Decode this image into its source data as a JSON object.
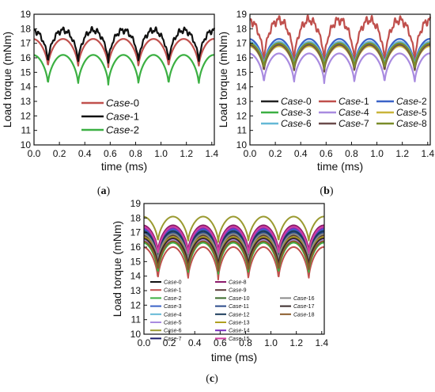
{
  "colors": {
    "case0": "#222222",
    "case1": "#c0504d",
    "case2": "#3cb043",
    "case3": "#3b63c8",
    "case4": "#a98be0",
    "case5": "#c9b43a",
    "case6": "#64b8d6",
    "case7": "#6b4b4b",
    "case8": "#7a8c2a"
  },
  "chart_data": [
    {
      "type": "line",
      "panel_label": "(a)",
      "xlabel": "time (ms)",
      "ylabel": "Load torque (mNm)",
      "xlim": [
        0.0,
        1.42
      ],
      "ylim": [
        10,
        19
      ],
      "xticks": [
        "0.0",
        "0.2",
        "0.4",
        "0.6",
        "0.8",
        "1.0",
        "1.2",
        "1.4"
      ],
      "yticks": [
        "10",
        "11",
        "12",
        "13",
        "14",
        "15",
        "16",
        "17",
        "18",
        "19"
      ],
      "legend_placement": "bottom-center",
      "period_ms": 0.2375,
      "series": [
        {
          "name": "Case-0",
          "color": "#c0504d",
          "peak": 17.3,
          "trough": 15.3
        },
        {
          "name": "Case-1",
          "color": "#111111",
          "peak": 17.9,
          "trough": 15.6,
          "noise": 0.25
        },
        {
          "name": "Case-2",
          "color": "#3cb043",
          "peak": 16.2,
          "trough": 14.1
        }
      ]
    },
    {
      "type": "line",
      "panel_label": "(b)",
      "xlabel": "time (ms)",
      "ylabel": "Load torque (mNm)",
      "xlim": [
        0.0,
        1.42
      ],
      "ylim": [
        10,
        19
      ],
      "xticks": [
        "0.0",
        "0.2",
        "0.4",
        "0.6",
        "0.8",
        "1.0",
        "1.2",
        "1.4"
      ],
      "yticks": [
        "10",
        "11",
        "12",
        "13",
        "14",
        "15",
        "16",
        "17",
        "18",
        "19"
      ],
      "legend_placement": "bottom",
      "period_ms": 0.2375,
      "series": [
        {
          "name": "Case-0",
          "color": "#222222",
          "peak": 17.1,
          "trough": 15.2
        },
        {
          "name": "Case-1",
          "color": "#c0504d",
          "peak": 18.6,
          "trough": 15.6,
          "noise": 0.35
        },
        {
          "name": "Case-2",
          "color": "#3b63c8",
          "peak": 17.3,
          "trough": 15.3
        },
        {
          "name": "Case-3",
          "color": "#3cb043",
          "peak": 17.0,
          "trough": 15.1
        },
        {
          "name": "Case-4",
          "color": "#a98be0",
          "peak": 16.3,
          "trough": 14.2
        },
        {
          "name": "Case-5",
          "color": "#c9b43a",
          "peak": 16.8,
          "trough": 15.0
        },
        {
          "name": "Case-6",
          "color": "#64b8d6",
          "peak": 17.1,
          "trough": 15.3
        },
        {
          "name": "Case-7",
          "color": "#6b4b4b",
          "peak": 16.9,
          "trough": 15.0
        },
        {
          "name": "Case-8",
          "color": "#7a8c2a",
          "peak": 17.0,
          "trough": 15.2
        }
      ]
    },
    {
      "type": "line",
      "panel_label": "(c)",
      "xlabel": "time (ms)",
      "ylabel": "Load torque (mNm)",
      "xlim": [
        0.0,
        1.42
      ],
      "ylim": [
        10,
        19
      ],
      "xticks": [
        "0.0",
        "0.2",
        "0.4",
        "0.6",
        "0.8",
        "1.0",
        "1.2",
        "1.4"
      ],
      "yticks": [
        "10",
        "11",
        "12",
        "13",
        "14",
        "15",
        "16",
        "17",
        "18",
        "19"
      ],
      "legend_placement": "bottom",
      "period_ms": 0.2375,
      "series": [
        {
          "name": "Case-0",
          "color": "#111111",
          "peak": 17.3,
          "trough": 15.3
        },
        {
          "name": "Case-1",
          "color": "#c0504d",
          "peak": 16.0,
          "trough": 13.7
        },
        {
          "name": "Case-2",
          "color": "#3cb043",
          "peak": 16.3,
          "trough": 14.1
        },
        {
          "name": "Case-3",
          "color": "#3b63c8",
          "peak": 17.2,
          "trough": 15.2
        },
        {
          "name": "Case-4",
          "color": "#64b8d6",
          "peak": 16.6,
          "trough": 14.6
        },
        {
          "name": "Case-5",
          "color": "#a98be0",
          "peak": 16.5,
          "trough": 14.5
        },
        {
          "name": "Case-6",
          "color": "#9a9a30",
          "peak": 18.1,
          "trough": 16.3
        },
        {
          "name": "Case-7",
          "color": "#1a1a6a",
          "peak": 17.4,
          "trough": 15.5
        },
        {
          "name": "Case-8",
          "color": "#8b1a6b",
          "peak": 17.5,
          "trough": 15.6
        },
        {
          "name": "Case-9",
          "color": "#5a3a3a",
          "peak": 16.8,
          "trough": 14.8
        },
        {
          "name": "Case-10",
          "color": "#3a6a2a",
          "peak": 16.9,
          "trough": 15.0
        },
        {
          "name": "Case-11",
          "color": "#2a4a8a",
          "peak": 17.0,
          "trough": 15.1
        },
        {
          "name": "Case-12",
          "color": "#1a3a5a",
          "peak": 17.1,
          "trough": 15.2
        },
        {
          "name": "Case-13",
          "color": "#b0a020",
          "peak": 16.7,
          "trough": 14.7
        },
        {
          "name": "Case-14",
          "color": "#7a30c0",
          "peak": 17.3,
          "trough": 15.4
        },
        {
          "name": "Case-15",
          "color": "#d040a0",
          "peak": 17.4,
          "trough": 15.4
        },
        {
          "name": "Case-16",
          "color": "#8a8a8a",
          "peak": 16.9,
          "trough": 14.9
        },
        {
          "name": "Case-17",
          "color": "#3a2a2a",
          "peak": 16.6,
          "trough": 14.6
        },
        {
          "name": "Case-18",
          "color": "#8a5a2a",
          "peak": 16.4,
          "trough": 14.3
        }
      ]
    }
  ]
}
